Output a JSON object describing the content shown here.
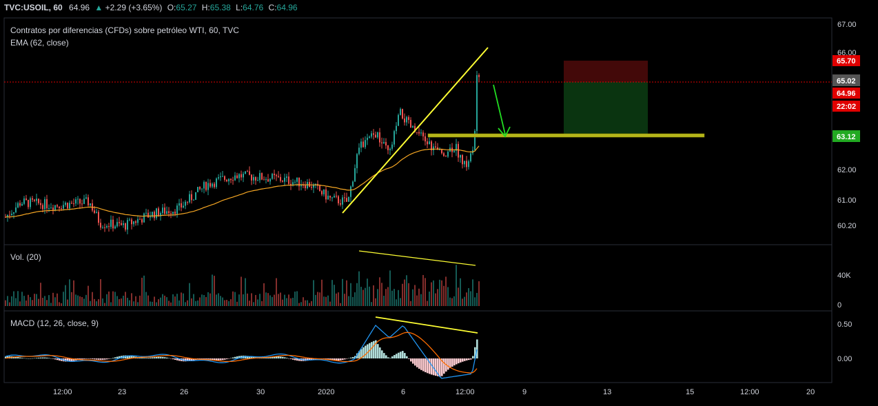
{
  "header": {
    "symbol": "TVC:USOIL, 60",
    "last": "64.96",
    "change": "+2.29 (+3.65%)",
    "o_label": "O:",
    "o_value": "65.27",
    "h_label": "H:",
    "h_value": "65.38",
    "l_label": "L:",
    "l_value": "64.76",
    "c_label": "C:",
    "c_value": "64.96"
  },
  "legends": {
    "title": "Contratos por diferencias (CFDs) sobre petróleo WTI, 60, TVC",
    "ema": "EMA (62, close)",
    "vol": "Vol. (20)",
    "macd": "MACD (12, 26, close, 9)"
  },
  "price_axis": {
    "ticks": [
      "67.00",
      "66.00",
      "62.00",
      "61.00",
      "60.20"
    ],
    "tags": [
      {
        "text": "65.70",
        "color": "#e00000"
      },
      {
        "text": "65.02",
        "color": "#555555"
      },
      {
        "text": "64.96",
        "color": "#e00000"
      },
      {
        "text": "22:02",
        "color": "#e00000"
      },
      {
        "text": "63.12",
        "color": "#22aa22"
      }
    ]
  },
  "volume_axis": {
    "ticks": [
      "40K",
      "0"
    ]
  },
  "macd_axis": {
    "ticks": [
      "0.50",
      "0.00"
    ]
  },
  "time_axis": {
    "ticks": [
      "12:00",
      "23",
      "26",
      "30",
      "2020",
      "6",
      "12:00",
      "9",
      "13",
      "15",
      "12:00",
      "20"
    ]
  },
  "colors": {
    "up": "#26a69a",
    "down": "#ef5350",
    "ema": "#f5a623",
    "trend": "#ffff33",
    "level": "#b5b51a",
    "arrow": "#22dd22"
  },
  "chart_data": {
    "type": "candlestick",
    "symbol": "TVC:USOIL",
    "interval": "60",
    "ylim": [
      59.8,
      67.2
    ],
    "last_price": 64.96,
    "key_levels": [
      65.7,
      65.02,
      64.96,
      63.12
    ],
    "trade_box": {
      "entry": 65.02,
      "stop": 65.7,
      "target": 63.12
    },
    "ema_period": 62,
    "volume_max_label": "40K",
    "macd_params": [
      12,
      26,
      9
    ]
  }
}
